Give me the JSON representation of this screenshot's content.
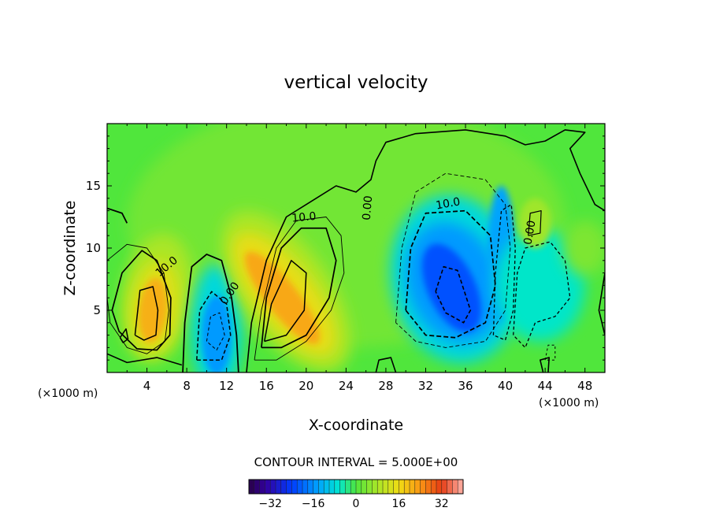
{
  "chart_data": {
    "type": "heatmap",
    "title": "vertical velocity",
    "xlabel": "X-coordinate",
    "ylabel": "Z-coordinate",
    "x_unit": "(×1000 m)",
    "z_unit": "(×1000 m)",
    "xlim": [
      0,
      50
    ],
    "ylim": [
      0,
      20
    ],
    "x_ticks": [
      "4",
      "8",
      "12",
      "16",
      "20",
      "24",
      "28",
      "32",
      "36",
      "40",
      "44",
      "48"
    ],
    "y_ticks": [
      "5",
      "10",
      "15"
    ],
    "contour_interval_text": "CONTOUR INTERVAL = 5.000E+00",
    "contour_labels": [
      "10.0",
      "10.0",
      "0.00",
      "0.00",
      "10.0",
      "0.00"
    ],
    "colorbar": {
      "range": [
        -40,
        40
      ],
      "ticks": [
        "−32",
        "−16",
        "0",
        "16",
        "32"
      ]
    },
    "features": [
      {
        "kind": "updraft",
        "x": 4.5,
        "z": 5,
        "peak": 22
      },
      {
        "kind": "downdraft",
        "x": 11,
        "z": 3,
        "peak": -16
      },
      {
        "kind": "updraft",
        "x": 17.5,
        "z": 6,
        "peak": 24
      },
      {
        "kind": "downdraft",
        "x": 34.5,
        "z": 7,
        "peak": -24
      },
      {
        "kind": "downdraft",
        "x": 39.5,
        "z": 9,
        "peak": -15
      },
      {
        "kind": "updraft",
        "x": 43,
        "z": 12,
        "peak": 6
      }
    ],
    "colors": {
      "background_field": "#4de640",
      "low": "#1a3cff",
      "high": "#e04a10"
    }
  }
}
